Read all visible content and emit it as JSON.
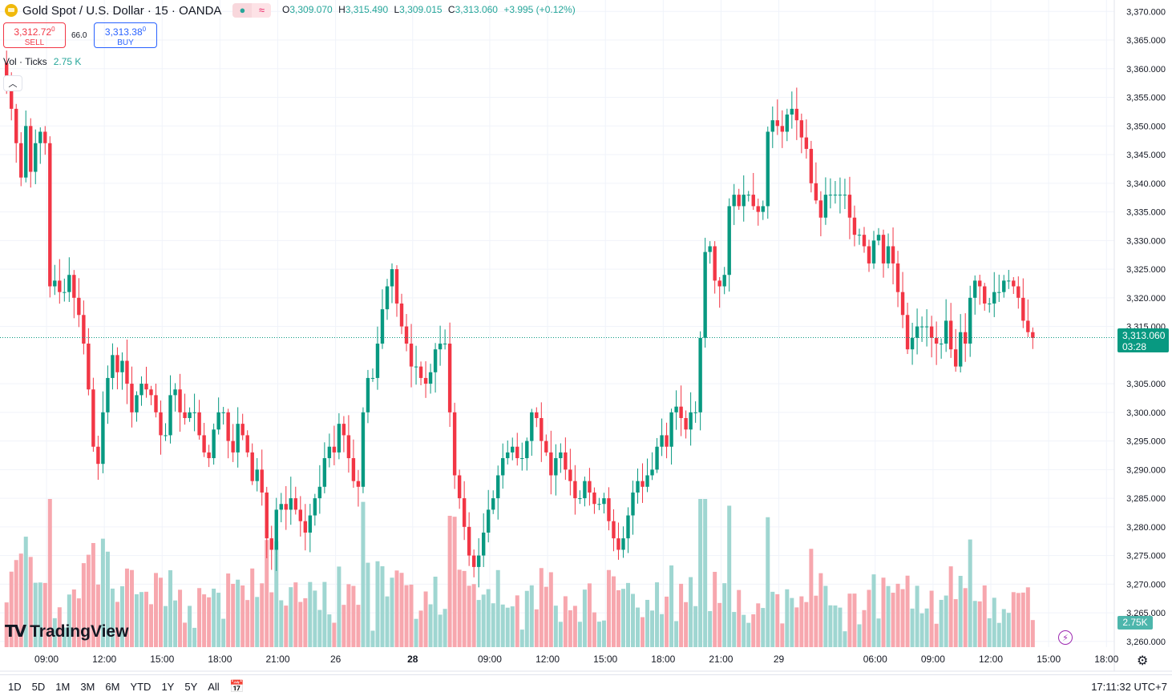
{
  "header": {
    "symbol": "Gold Spot / U.S. Dollar · 15 · OANDA",
    "icon": "gold-coin-icon",
    "ohlc": {
      "o_label": "O",
      "o": "3,309.070",
      "h_label": "H",
      "h": "3,315.490",
      "l_label": "L",
      "l": "3,309.015",
      "c_label": "C",
      "c": "3,313.060",
      "change": "+3.995 (+0.12%)"
    }
  },
  "trade": {
    "sell_price": "3,312.72",
    "sell_sup": "0",
    "sell_label": "SELL",
    "spread": "66.0",
    "buy_price": "3,313.38",
    "buy_sup": "0",
    "buy_label": "BUY"
  },
  "volume_legend": {
    "label": "Vol · Ticks",
    "value": "2.75 K"
  },
  "price_tag": {
    "price": "3,313.060",
    "countdown": "03:28"
  },
  "volume_tag": "2.75K",
  "logo_text": "TradingView",
  "bottom": {
    "ranges": [
      "1D",
      "5D",
      "1M",
      "3M",
      "6M",
      "YTD",
      "1Y",
      "5Y",
      "All"
    ],
    "clock": "17:11:32 UTC+7"
  },
  "colors": {
    "up": "#089981",
    "down": "#f23645",
    "vol_up": "#9fd6d1",
    "vol_down": "#f7a7ae",
    "grid": "#f0f3fa"
  },
  "chart_data": {
    "type": "candlestick",
    "y_axis": {
      "ticks": [
        "3,370.000",
        "3,365.000",
        "3,360.000",
        "3,355.000",
        "3,350.000",
        "3,345.000",
        "3,340.000",
        "3,335.000",
        "3,330.000",
        "3,325.000",
        "3,320.000",
        "3,315.000",
        "3,305.000",
        "3,300.000",
        "3,295.000",
        "3,290.000",
        "3,285.000",
        "3,280.000",
        "3,275.000",
        "3,270.000",
        "3,265.000",
        "3,260.000"
      ],
      "tick_values": [
        3370,
        3365,
        3360,
        3355,
        3350,
        3345,
        3340,
        3335,
        3330,
        3325,
        3320,
        3315,
        3305,
        3300,
        3295,
        3290,
        3285,
        3280,
        3275,
        3270,
        3265,
        3260
      ],
      "range": [
        3259,
        3372
      ]
    },
    "x_axis": {
      "labels": [
        "09:00",
        "12:00",
        "15:00",
        "18:00",
        "21:00",
        "26",
        "28",
        "09:00",
        "12:00",
        "15:00",
        "18:00",
        "21:00",
        "29",
        "06:00",
        "09:00",
        "12:00",
        "15:00",
        "18:00"
      ],
      "bold": [
        false,
        false,
        false,
        false,
        false,
        false,
        true,
        false,
        false,
        false,
        false,
        false,
        false,
        false,
        false,
        false,
        false,
        false
      ],
      "label_bar_index": [
        4,
        16,
        28,
        40,
        52,
        64,
        80,
        96,
        108,
        120,
        132,
        144,
        156,
        176,
        188,
        200,
        212,
        224
      ]
    },
    "last_price": 3313.06,
    "closes": [
      3358,
      3353,
      3347,
      3341,
      3350,
      3342,
      3347,
      3349,
      3347,
      3322,
      3323,
      3321,
      3321,
      3324,
      3320,
      3317,
      3312,
      3304,
      3294,
      3291,
      3300,
      3306,
      3310,
      3307,
      3309,
      3305,
      3300,
      3303,
      3305,
      3304,
      3303,
      3300,
      3296,
      3296,
      3303,
      3304,
      3300,
      3299,
      3300,
      3300,
      3296,
      3293,
      3292,
      3297,
      3300,
      3300,
      3295,
      3293,
      3298,
      3296,
      3293,
      3288,
      3290,
      3286,
      3278,
      3276,
      3283,
      3284,
      3283,
      3285,
      3283,
      3281,
      3279,
      3282,
      3285,
      3287,
      3292,
      3294,
      3293,
      3298,
      3296,
      3292,
      3288,
      3287,
      3300,
      3306,
      3306,
      3312,
      3318,
      3322,
      3325,
      3319,
      3315,
      3312,
      3308,
      3308,
      3306,
      3305,
      3307,
      3311,
      3312,
      3312,
      3300,
      3289,
      3285,
      3280,
      3275,
      3273,
      3275,
      3279,
      3283,
      3285,
      3289,
      3292,
      3293,
      3294,
      3292,
      3292,
      3295,
      3300,
      3299,
      3295,
      3293,
      3289,
      3292,
      3293,
      3290,
      3288,
      3285,
      3285,
      3288,
      3286,
      3284,
      3284,
      3285,
      3281,
      3278,
      3276,
      3278,
      3282,
      3286,
      3288,
      3287,
      3289,
      3290,
      3294,
      3296,
      3294,
      3300,
      3301,
      3299,
      3297,
      3300,
      3300,
      3313,
      3328,
      3329,
      3323,
      3322,
      3324,
      3336,
      3338,
      3336,
      3338,
      3338,
      3336,
      3335,
      3336,
      3349,
      3351,
      3350,
      3349,
      3352,
      3353,
      3351,
      3348,
      3346,
      3340,
      3337,
      3334,
      3338,
      3338,
      3338,
      3338,
      3338,
      3334,
      3331,
      3331,
      3329,
      3326,
      3330,
      3331,
      3326,
      3329,
      3326,
      3321,
      3317,
      3311,
      3313,
      3315,
      3315,
      3315,
      3313,
      3312,
      3312,
      3316,
      3311,
      3308,
      3314,
      3312,
      3320,
      3323,
      3322,
      3319,
      3319,
      3321,
      3321,
      3323,
      3323,
      3322,
      3320,
      3316,
      3314,
      3313
    ]
  }
}
